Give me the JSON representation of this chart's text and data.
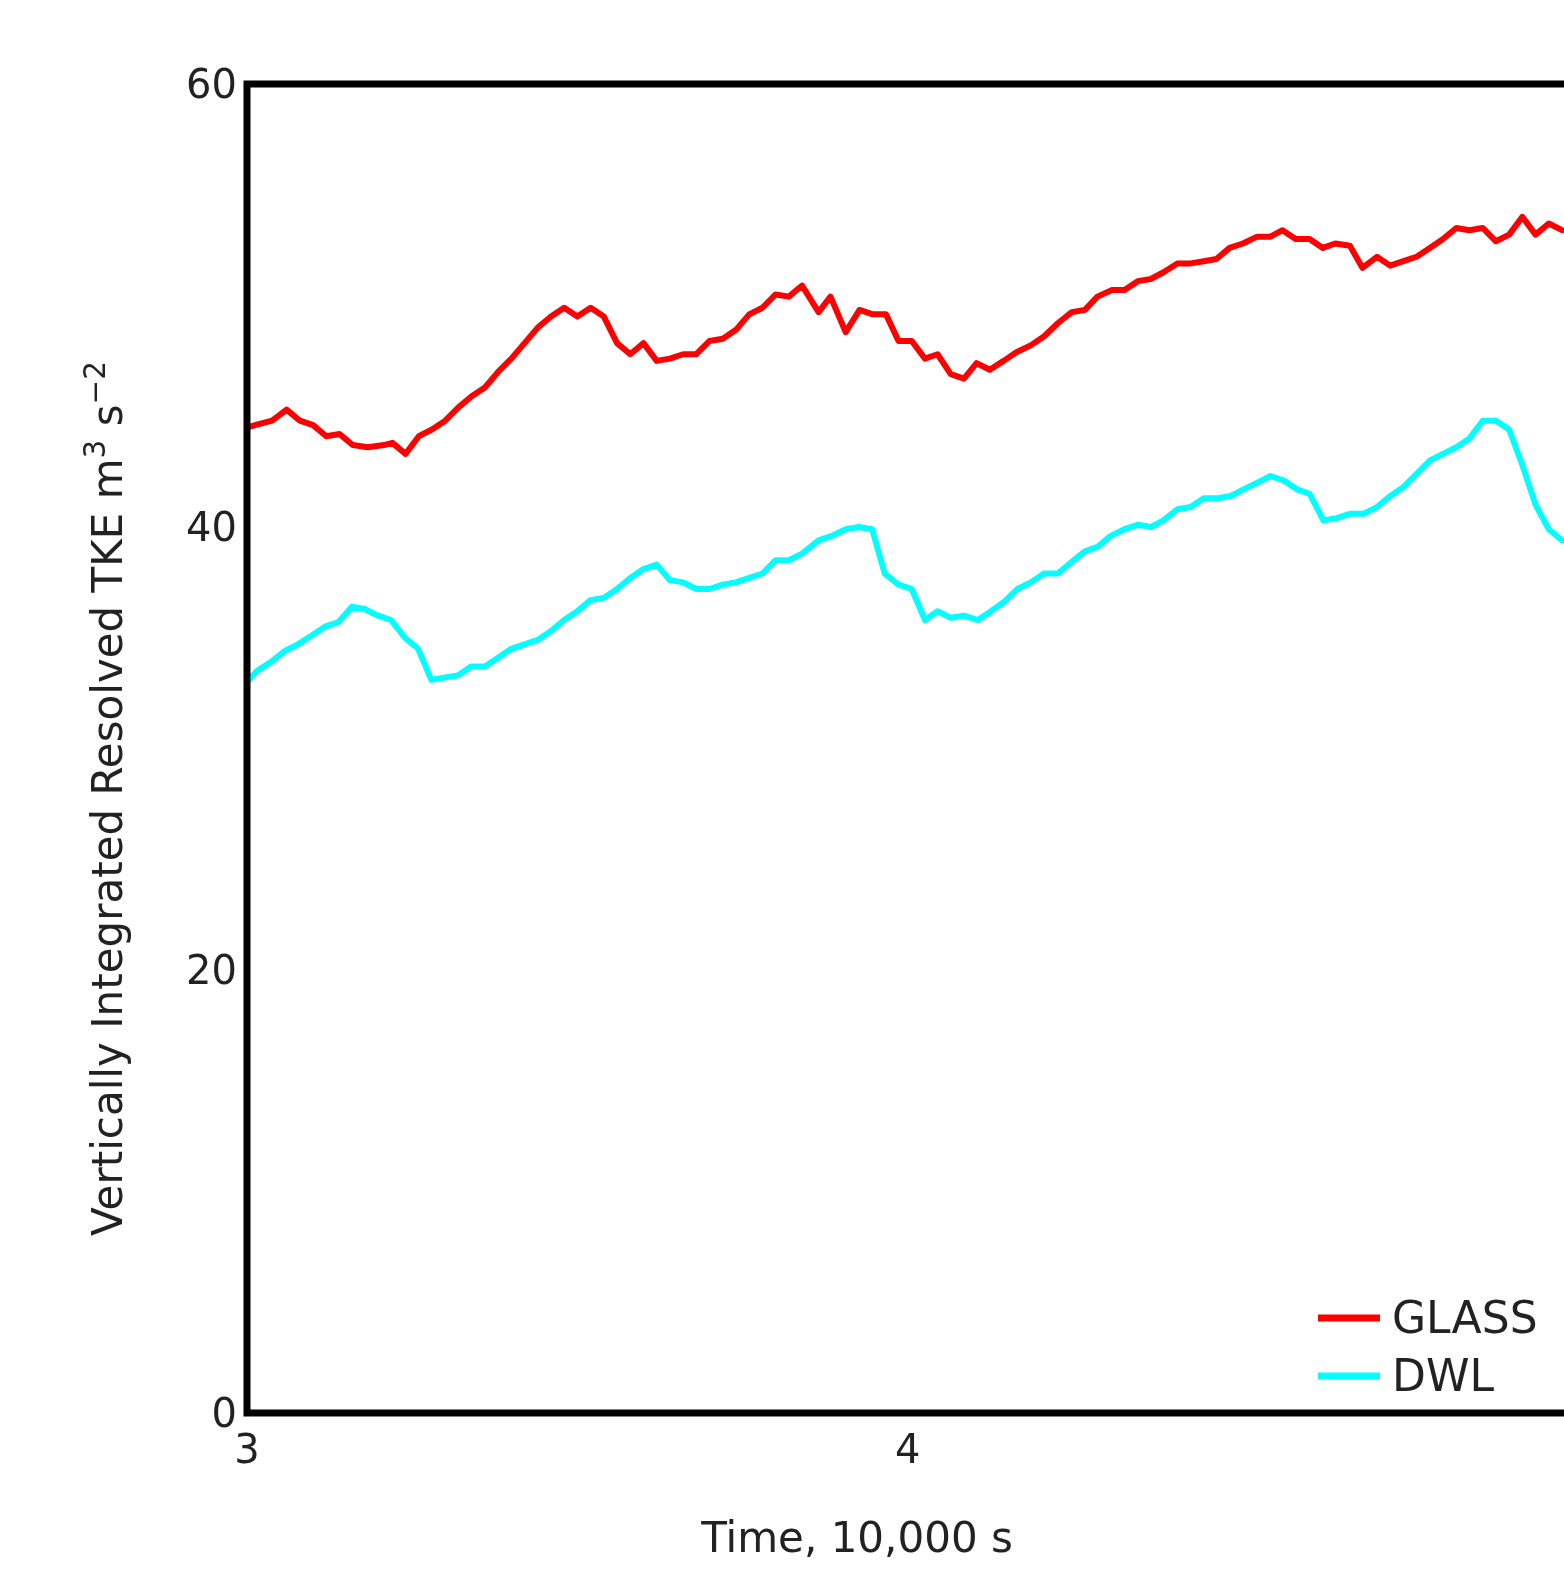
{
  "chart_data": {
    "type": "line",
    "xlabel": "Time, 10,000 s",
    "ylabel": "Vertically Integrated Resolved TKE m$^{3}$ s$^{−2}$",
    "xlim": [
      3,
      4.99
    ],
    "xticks": [
      3,
      4
    ],
    "ylim": [
      0,
      60
    ],
    "yticks": [
      0,
      20,
      40,
      60
    ],
    "grid": false,
    "legend": "bottom right",
    "line_style": "solid",
    "marker": "none",
    "x": [
      3.0,
      3.038,
      3.06,
      3.08,
      3.1,
      3.12,
      3.14,
      3.16,
      3.183,
      3.207,
      3.22,
      3.24,
      3.26,
      3.28,
      3.3,
      3.32,
      3.34,
      3.36,
      3.38,
      3.4,
      3.42,
      3.44,
      3.46,
      3.48,
      3.5,
      3.52,
      3.54,
      3.56,
      3.58,
      3.6,
      3.62,
      3.64,
      3.66,
      3.68,
      3.7,
      3.72,
      3.74,
      3.76,
      3.78,
      3.8,
      3.82,
      3.84,
      3.865,
      3.883,
      3.906,
      3.927,
      3.947,
      3.967,
      3.986,
      4.006,
      4.026,
      4.045,
      4.065,
      4.085,
      4.104,
      4.124,
      4.145,
      4.165,
      4.186,
      4.206,
      4.227,
      4.248,
      4.268,
      4.287,
      4.309,
      4.328,
      4.348,
      4.368,
      4.387,
      4.408,
      4.428,
      4.448,
      4.467,
      4.487,
      4.507,
      4.528,
      4.548,
      4.567,
      4.587,
      4.608,
      4.628,
      4.647,
      4.669,
      4.688,
      4.71,
      4.73,
      4.75,
      4.77,
      4.79,
      4.81,
      4.83,
      4.85,
      4.87,
      4.89,
      4.91,
      4.93,
      4.95,
      4.97,
      4.99
    ],
    "series": [
      {
        "name": "GLASS",
        "color": "#ff0000",
        "values": [
          44.5,
          44.8,
          45.3,
          44.8,
          44.6,
          44.1,
          44.2,
          43.7,
          43.6,
          43.7,
          43.8,
          43.3,
          44.1,
          44.4,
          44.8,
          45.4,
          45.9,
          46.3,
          47.0,
          47.6,
          48.3,
          49.0,
          49.5,
          49.9,
          49.5,
          49.9,
          49.5,
          48.3,
          47.8,
          48.3,
          47.5,
          47.6,
          47.8,
          47.8,
          48.4,
          48.5,
          48.9,
          49.6,
          49.9,
          50.5,
          50.4,
          50.9,
          49.7,
          50.4,
          48.8,
          49.8,
          49.6,
          49.6,
          48.4,
          48.4,
          47.6,
          47.8,
          46.9,
          46.7,
          47.4,
          47.1,
          47.5,
          47.9,
          48.2,
          48.6,
          49.2,
          49.7,
          49.8,
          50.4,
          50.7,
          50.7,
          51.1,
          51.2,
          51.5,
          51.9,
          51.9,
          52.0,
          52.1,
          52.6,
          52.8,
          53.1,
          53.1,
          53.4,
          53.0,
          53.0,
          52.6,
          52.8,
          52.7,
          51.7,
          52.2,
          51.8,
          52.0,
          52.2,
          52.6,
          53.0,
          53.5,
          53.4,
          53.5,
          52.9,
          53.2,
          54.0,
          53.2,
          53.7,
          53.4
        ]
      },
      {
        "name": "DWL",
        "color": "#00ffff",
        "x": [
          3.0,
          3.015,
          3.036,
          3.057,
          3.077,
          3.098,
          3.118,
          3.138,
          3.159,
          3.178,
          3.198,
          3.218,
          3.239,
          3.259,
          3.279,
          3.298,
          3.319,
          3.339,
          3.36,
          3.38,
          3.4,
          3.42,
          3.44,
          3.46,
          3.48,
          3.5,
          3.52,
          3.54,
          3.56,
          3.58,
          3.6,
          3.62,
          3.64,
          3.66,
          3.68,
          3.7,
          3.72,
          3.74,
          3.76,
          3.78,
          3.8,
          3.82,
          3.84,
          3.865,
          3.885,
          3.906,
          3.926,
          3.946,
          3.965,
          3.986,
          4.006,
          4.026,
          4.045,
          4.065,
          4.085,
          4.106,
          4.126,
          4.145,
          4.166,
          4.186,
          4.206,
          4.227,
          4.247,
          4.268,
          4.287,
          4.307,
          4.328,
          4.348,
          4.368,
          4.387,
          4.408,
          4.428,
          4.448,
          4.469,
          4.489,
          4.508,
          4.529,
          4.549,
          4.569,
          4.589,
          4.608,
          4.629,
          4.649,
          4.67,
          4.69,
          4.71,
          4.73,
          4.75,
          4.77,
          4.79,
          4.81,
          4.83,
          4.85,
          4.87,
          4.89,
          4.91,
          4.93,
          4.95,
          4.97,
          4.99
        ],
        "values": [
          33.0,
          33.5,
          33.9,
          34.4,
          34.7,
          35.1,
          35.5,
          35.7,
          36.4,
          36.3,
          36.0,
          35.8,
          35.0,
          34.5,
          33.1,
          33.2,
          33.3,
          33.7,
          33.7,
          34.1,
          34.5,
          34.7,
          34.9,
          35.3,
          35.8,
          36.2,
          36.7,
          36.8,
          37.2,
          37.7,
          38.1,
          38.3,
          37.6,
          37.5,
          37.2,
          37.2,
          37.4,
          37.5,
          37.7,
          37.9,
          38.5,
          38.5,
          38.8,
          39.4,
          39.6,
          39.9,
          40.0,
          39.9,
          37.9,
          37.4,
          37.2,
          35.8,
          36.2,
          35.9,
          36.0,
          35.8,
          36.2,
          36.6,
          37.2,
          37.5,
          37.9,
          37.9,
          38.4,
          38.9,
          39.1,
          39.6,
          39.9,
          40.1,
          40.0,
          40.3,
          40.8,
          40.9,
          41.3,
          41.3,
          41.4,
          41.7,
          42.0,
          42.3,
          42.1,
          41.7,
          41.5,
          40.3,
          40.4,
          40.6,
          40.6,
          40.9,
          41.4,
          41.8,
          42.4,
          43.0,
          43.3,
          43.6,
          44.0,
          44.8,
          44.8,
          44.4,
          42.8,
          41.0,
          39.9,
          39.4
        ]
      }
    ]
  }
}
